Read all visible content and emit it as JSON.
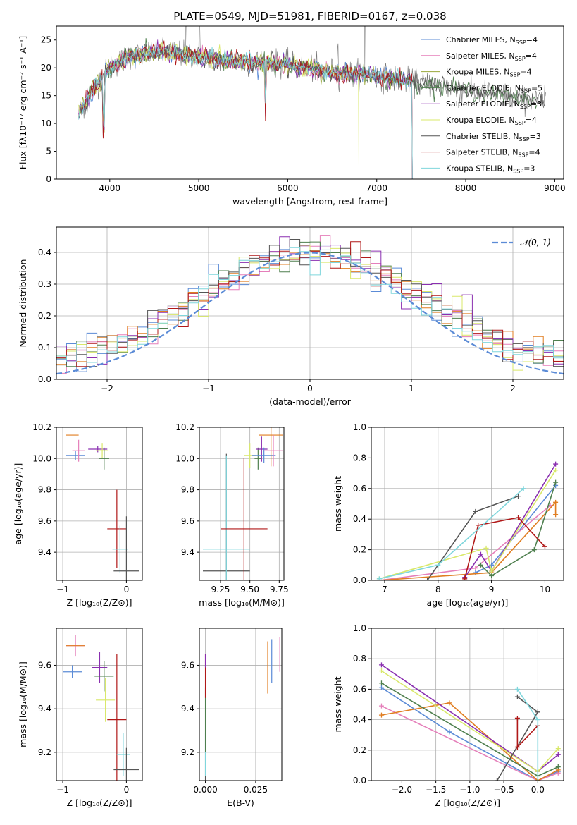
{
  "colors": {
    "chabrier_miles": "#5b8bd6",
    "salpeter_miles": "#e57fba",
    "kroupa_miles": "#9aa83a",
    "chabrier_elodie": "#4e7f4e",
    "salpeter_elodie": "#8a2fb0",
    "kroupa_elodie": "#d9e86a",
    "chabrier_stelib": "#555555",
    "salpeter_stelib": "#b01818",
    "kroupa_stelib": "#7fd6dc",
    "orange": "#e07d20"
  },
  "chart_data": [
    {
      "type": "line",
      "title": "PLATE=0549, MJD=51981, FIBERID=0167, z=0.038",
      "xlabel": "wavelength [Angstrom, rest frame]",
      "ylabel": "Flux [fλ10⁻¹⁷ erg cm⁻² s⁻¹ A⁻¹]",
      "xlim": [
        3400,
        9100
      ],
      "ylim": [
        0,
        27.5
      ],
      "xticks": [
        "4000",
        "5000",
        "6000",
        "7000",
        "8000",
        "9000"
      ],
      "yticks": [
        "0",
        "5",
        "10",
        "15",
        "20",
        "25"
      ],
      "legend_position": "upper-right",
      "legend": [
        {
          "label": "Chabrier MILES, N",
          "sub": "SSP",
          "tail": "=4"
        },
        {
          "label": "Salpeter MILES, N",
          "sub": "SSP",
          "tail": "=4"
        },
        {
          "label": "Kroupa MILES, N",
          "sub": "SSP",
          "tail": "=4"
        },
        {
          "label": "Chabrier ELODIE, N",
          "sub": "SSP",
          "tail": "=5"
        },
        {
          "label": "Salpeter ELODIE, N",
          "sub": "SSP",
          "tail": "=3"
        },
        {
          "label": "Kroupa ELODIE, N",
          "sub": "SSP",
          "tail": "=4"
        },
        {
          "label": "Chabrier STELIB, N",
          "sub": "SSP",
          "tail": "=3"
        },
        {
          "label": "Salpeter STELIB, N",
          "sub": "SSP",
          "tail": "=4"
        },
        {
          "label": "Kroupa STELIB, N",
          "sub": "SSP",
          "tail": "=3"
        }
      ],
      "continuum": {
        "x": [
          3650,
          3700,
          3800,
          3900,
          4000,
          4100,
          4200,
          4400,
          4600,
          4800,
          5000,
          5200,
          5500,
          5800,
          6000,
          6200,
          6400,
          6600,
          6800,
          7000,
          7200,
          7400,
          7600,
          7800,
          8000,
          8200,
          8400,
          8600,
          8800
        ],
        "y": [
          12,
          13,
          16,
          18,
          20,
          21,
          22,
          22.5,
          23,
          22.5,
          22,
          21.5,
          21,
          21,
          20.5,
          20,
          19.5,
          19,
          19,
          18.5,
          18,
          17.5,
          17,
          16.5,
          16,
          15.5,
          15,
          14.5,
          14
        ]
      }
    },
    {
      "type": "histogram",
      "xlabel": "(data-model)/error",
      "ylabel": "Normed distribution",
      "xlim": [
        -2.5,
        2.5
      ],
      "ylim": [
        0,
        0.48
      ],
      "xticks": [
        "−2",
        "−1",
        "0",
        "1",
        "2"
      ],
      "yticks": [
        "0.0",
        "0.1",
        "0.2",
        "0.3",
        "0.4"
      ],
      "legend": "𝒩(0, 1)",
      "grid": true
    },
    {
      "type": "scatter",
      "xlabel": "Z [log₁₀(Z/Z⊙)]",
      "ylabel": "age  [log₁₀(age/yr)]",
      "xlim": [
        -1.1,
        0.25
      ],
      "ylim": [
        9.22,
        10.2
      ],
      "xticks": [
        "−1",
        "0"
      ],
      "yticks": [
        "9.4",
        "9.6",
        "9.8",
        "10.0",
        "10.2"
      ],
      "grid": true,
      "points": [
        {
          "series": "chabrier_miles",
          "x": -0.8,
          "y": 10.02,
          "xerr": 0.15,
          "yerr": 0.03
        },
        {
          "series": "orange",
          "x": -0.85,
          "y": 10.15,
          "xerr": 0.1,
          "yerr": 0.0
        },
        {
          "series": "salpeter_miles",
          "x": -0.75,
          "y": 10.05,
          "xerr": 0.1,
          "yerr": 0.07
        },
        {
          "series": "salpeter_elodie",
          "x": -0.45,
          "y": 10.06,
          "xerr": 0.15,
          "yerr": 0.02
        },
        {
          "series": "kroupa_elodie",
          "x": -0.38,
          "y": 10.05,
          "xerr": 0.1,
          "yerr": 0.05
        },
        {
          "series": "chabrier_elodie",
          "x": -0.35,
          "y": 10.0,
          "xerr": 0.08,
          "yerr": 0.07
        },
        {
          "series": "salpeter_stelib",
          "x": -0.15,
          "y": 9.55,
          "xerr": 0.15,
          "yerr": 0.25
        },
        {
          "series": "kroupa_stelib",
          "x": -0.1,
          "y": 9.42,
          "xerr": 0.12,
          "yerr": 0.15
        },
        {
          "series": "chabrier_stelib",
          "x": 0.0,
          "y": 9.28,
          "xerr": 0.2,
          "yerr": 0.35
        }
      ]
    },
    {
      "type": "scatter",
      "xlabel": "mass [log₁₀(M/M⊙)]",
      "ylabel": "",
      "xlim": [
        9.07,
        9.79
      ],
      "ylim": [
        9.22,
        10.2
      ],
      "xticks": [
        "9.25",
        "9.50",
        "9.75"
      ],
      "yticks": [
        "9.4",
        "9.6",
        "9.8",
        "10.0",
        "10.2"
      ],
      "grid": true,
      "points": [
        {
          "series": "chabrier_stelib",
          "x": 9.3,
          "y": 9.28,
          "xerr": 0.2,
          "yerr": 0.75
        },
        {
          "series": "kroupa_stelib",
          "x": 9.3,
          "y": 9.42,
          "xerr": 0.2,
          "yerr": 0.6
        },
        {
          "series": "salpeter_stelib",
          "x": 9.45,
          "y": 9.55,
          "xerr": 0.2,
          "yerr": 0.45
        },
        {
          "series": "kroupa_elodie",
          "x": 9.5,
          "y": 10.02,
          "xerr": 0.05,
          "yerr": 0.08
        },
        {
          "series": "chabrier_elodie",
          "x": 9.57,
          "y": 10.0,
          "xerr": 0.03,
          "yerr": 0.07
        },
        {
          "series": "salpeter_elodie",
          "x": 9.6,
          "y": 10.06,
          "xerr": 0.05,
          "yerr": 0.08
        },
        {
          "series": "chabrier_miles",
          "x": 9.62,
          "y": 10.02,
          "xerr": 0.1,
          "yerr": 0.05
        },
        {
          "series": "orange",
          "x": 9.68,
          "y": 10.15,
          "xerr": 0.1,
          "yerr": 0.2
        },
        {
          "series": "salpeter_miles",
          "x": 9.7,
          "y": 10.05,
          "xerr": 0.08,
          "yerr": 0.1
        }
      ]
    },
    {
      "type": "line",
      "xlabel": "age  [log₁₀(age/yr)]",
      "ylabel": "mass weight",
      "xlim": [
        6.75,
        10.35
      ],
      "ylim": [
        0,
        1.0
      ],
      "xticks": [
        "7",
        "8",
        "9",
        "10"
      ],
      "yticks": [
        "0.0",
        "0.2",
        "0.4",
        "0.6",
        "0.8",
        "1.0"
      ],
      "grid": true,
      "series": [
        {
          "name": "chabrier_miles",
          "x": [
            8.7,
            9.0,
            10.2
          ],
          "y": [
            0.05,
            0.1,
            0.62
          ]
        },
        {
          "name": "salpeter_miles",
          "x": [
            6.9,
            8.7,
            10.1
          ],
          "y": [
            0.0,
            0.08,
            0.49
          ]
        },
        {
          "name": "orange",
          "x": [
            6.9,
            9.0,
            10.2,
            10.2
          ],
          "y": [
            0.0,
            0.05,
            0.51,
            0.43
          ]
        },
        {
          "name": "chabrier_elodie",
          "x": [
            8.8,
            9.0,
            9.8,
            10.2
          ],
          "y": [
            0.1,
            0.03,
            0.2,
            0.64
          ]
        },
        {
          "name": "salpeter_elodie",
          "x": [
            8.5,
            8.8,
            9.0,
            10.2
          ],
          "y": [
            0.02,
            0.17,
            0.06,
            0.76
          ]
        },
        {
          "name": "kroupa_elodie",
          "x": [
            6.9,
            8.9,
            9.0,
            10.2
          ],
          "y": [
            0.01,
            0.21,
            0.06,
            0.72
          ]
        },
        {
          "name": "chabrier_stelib",
          "x": [
            7.8,
            8.7,
            9.5
          ],
          "y": [
            0.0,
            0.45,
            0.55
          ]
        },
        {
          "name": "salpeter_stelib",
          "x": [
            8.5,
            8.75,
            9.5,
            10.0
          ],
          "y": [
            0.01,
            0.36,
            0.41,
            0.22
          ]
        },
        {
          "name": "kroupa_stelib",
          "x": [
            6.9,
            8.0,
            9.6
          ],
          "y": [
            0.01,
            0.1,
            0.6
          ]
        }
      ]
    },
    {
      "type": "scatter",
      "xlabel": "Z [log₁₀(Z/Z⊙)]",
      "ylabel": "mass [log₁₀(M/M⊙)]",
      "xlim": [
        -1.1,
        0.25
      ],
      "ylim": [
        9.07,
        9.77
      ],
      "xticks": [
        "−1",
        "0"
      ],
      "yticks": [
        "9.2",
        "9.4",
        "9.6"
      ],
      "grid": true,
      "points": [
        {
          "series": "salpeter_miles",
          "x": -0.8,
          "y": 9.69,
          "xerr": 0.15,
          "yerr": 0.05
        },
        {
          "series": "orange",
          "x": -0.8,
          "y": 9.69,
          "xerr": 0.15,
          "yerr": 0.0
        },
        {
          "series": "chabrier_miles",
          "x": -0.85,
          "y": 9.57,
          "xerr": 0.15,
          "yerr": 0.03
        },
        {
          "series": "salpeter_elodie",
          "x": -0.42,
          "y": 9.59,
          "xerr": 0.12,
          "yerr": 0.07
        },
        {
          "series": "chabrier_elodie",
          "x": -0.35,
          "y": 9.55,
          "xerr": 0.15,
          "yerr": 0.07
        },
        {
          "series": "kroupa_elodie",
          "x": -0.33,
          "y": 9.44,
          "xerr": 0.15,
          "yerr": 0.1
        },
        {
          "series": "salpeter_stelib",
          "x": -0.15,
          "y": 9.35,
          "xerr": 0.15,
          "yerr": 0.3
        },
        {
          "series": "kroupa_stelib",
          "x": -0.05,
          "y": 9.19,
          "xerr": 0.1,
          "yerr": 0.1
        },
        {
          "series": "chabrier_stelib",
          "x": 0.0,
          "y": 9.12,
          "xerr": 0.2,
          "yerr": 0.1
        }
      ]
    },
    {
      "type": "scatter",
      "xlabel": "E(B-V)",
      "ylabel": "",
      "xlim": [
        -0.003,
        0.038
      ],
      "ylim": [
        9.07,
        9.77
      ],
      "xticks": [
        "0.000",
        "0.025"
      ],
      "yticks": [
        "9.2",
        "9.4",
        "9.6"
      ],
      "grid": true,
      "points": [
        {
          "series": "chabrier_stelib",
          "x": 0.0,
          "y": 9.12,
          "xerr": 0.0,
          "yerr": 0.08
        },
        {
          "series": "kroupa_stelib",
          "x": 0.0,
          "y": 9.19,
          "xerr": 0.0,
          "yerr": 0.1
        },
        {
          "series": "chabrier_elodie",
          "x": 0.0,
          "y": 9.35,
          "xerr": 0.0,
          "yerr": 0.15
        },
        {
          "series": "salpeter_stelib",
          "x": 0.0,
          "y": 9.55,
          "xerr": 0.0,
          "yerr": 0.1
        },
        {
          "series": "salpeter_elodie",
          "x": 0.0,
          "y": 9.62,
          "xerr": 0.0,
          "yerr": 0.03
        },
        {
          "series": "orange",
          "x": 0.031,
          "y": 9.59,
          "xerr": 0.0,
          "yerr": 0.12
        },
        {
          "series": "chabrier_miles",
          "x": 0.033,
          "y": 9.62,
          "xerr": 0.0,
          "yerr": 0.1
        },
        {
          "series": "salpeter_miles",
          "x": 0.037,
          "y": 9.65,
          "xerr": 0.0,
          "yerr": 0.08
        }
      ]
    },
    {
      "type": "line",
      "xlabel": "Z [log₁₀(Z/Z⊙)]",
      "ylabel": "mass weight",
      "xlim": [
        -2.45,
        0.38
      ],
      "ylim": [
        0,
        1.0
      ],
      "xticks": [
        "−2.0",
        "−1.5",
        "−1.0",
        "−0.5",
        "0.0"
      ],
      "yticks": [
        "0.0",
        "0.2",
        "0.4",
        "0.6",
        "0.8",
        "1.0"
      ],
      "grid": true,
      "series": [
        {
          "name": "chabrier_miles",
          "x": [
            -2.3,
            -1.3,
            0.0,
            0.3
          ],
          "y": [
            0.61,
            0.32,
            0.0,
            0.06
          ]
        },
        {
          "name": "salpeter_miles",
          "x": [
            -2.3,
            0.0,
            0.3
          ],
          "y": [
            0.49,
            0.0,
            0.05
          ]
        },
        {
          "name": "orange",
          "x": [
            -2.3,
            -1.3,
            0.0,
            0.3
          ],
          "y": [
            0.43,
            0.51,
            0.0,
            0.07
          ]
        },
        {
          "name": "chabrier_elodie",
          "x": [
            -2.3,
            0.0,
            0.3
          ],
          "y": [
            0.64,
            0.03,
            0.09
          ]
        },
        {
          "name": "salpeter_elodie",
          "x": [
            -2.3,
            0.0,
            0.3
          ],
          "y": [
            0.76,
            0.06,
            0.17
          ]
        },
        {
          "name": "kroupa_elodie",
          "x": [
            -2.3,
            0.0,
            0.3
          ],
          "y": [
            0.72,
            0.06,
            0.21
          ]
        },
        {
          "name": "chabrier_stelib",
          "x": [
            -0.3,
            0.0,
            -0.6
          ],
          "y": [
            0.55,
            0.45,
            0.0
          ]
        },
        {
          "name": "salpeter_stelib",
          "x": [
            -0.3,
            0.0,
            -0.3,
            -0.3
          ],
          "y": [
            0.22,
            0.36,
            0.22,
            0.41
          ]
        },
        {
          "name": "kroupa_stelib",
          "x": [
            -0.3,
            0.0,
            0.0
          ],
          "y": [
            0.6,
            0.4,
            0.0
          ]
        }
      ]
    }
  ]
}
